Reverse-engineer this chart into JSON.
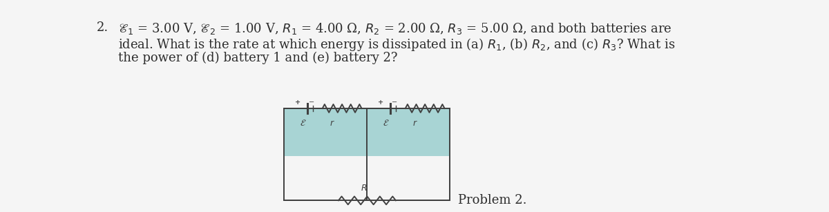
{
  "background_color": "#f5f5f5",
  "text_color": "#2c2c2c",
  "problem_number": "2.",
  "main_text_line1": "$\\mathscr{E}_1$ = 3.00 V, $\\mathscr{E}_2$ = 1.00 V, $R_1$ = 4.00 Ω, $R_2$ = 2.00 Ω, $R_3$ = 5.00 Ω, and both batteries are",
  "main_text_line2": "ideal. What is the rate at which energy is dissipated in (a) $R_1$, (b) $R_2$, and (c) $R_3$? What is",
  "main_text_line3": "the power of (d) battery 1 and (e) battery 2?",
  "problem_label": "Problem 2.",
  "circuit_box_color": "#a8d4d4",
  "circuit_line_color": "#404040",
  "font_size_main": 13.0,
  "font_size_label": 13.0
}
